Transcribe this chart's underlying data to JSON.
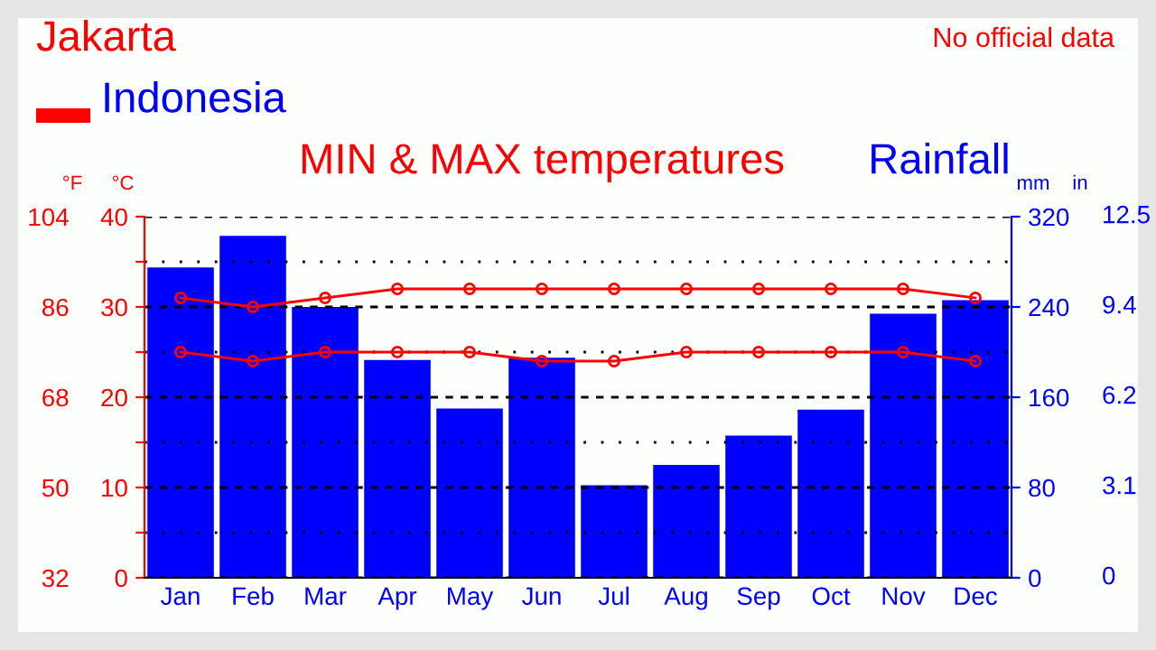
{
  "chart_data": {
    "type": "bar",
    "title": "Jakarta",
    "subtitle": "Indonesia",
    "annotations": [
      "MIN & MAX temperatures",
      "Rainfall",
      "No official data",
      "in",
      "0",
      "3.1",
      "6.2",
      "9.4",
      "12.5"
    ],
    "ylabel": "°C",
    "y2label": "mm",
    "y3label": "°F",
    "categories": [
      "Jan",
      "Feb",
      "Mar",
      "Apr",
      "May",
      "Jun",
      "Jul",
      "Aug",
      "Sep",
      "Oct",
      "Nov",
      "Dec"
    ],
    "series": [
      {
        "axis": "y2",
        "color": "#0000ff",
        "values": [
          275,
          303,
          240,
          193,
          150,
          195,
          82,
          100,
          126,
          149,
          234,
          246
        ]
      },
      {
        "type": "line",
        "axis": "y",
        "color": "#ff0000",
        "values": [
          31,
          30,
          31,
          32,
          32,
          32,
          32,
          32,
          32,
          32,
          32,
          31
        ]
      },
      {
        "type": "line",
        "axis": "y",
        "color": "#ff0000",
        "values": [
          25,
          24,
          25,
          25,
          25,
          24,
          24,
          25,
          25,
          25,
          25,
          24
        ]
      }
    ],
    "ylim": [
      0,
      40
    ],
    "yticks": [
      0,
      {
        "value": 5,
        "label": null
      },
      10,
      {
        "value": 15,
        "label": null
      },
      20,
      {
        "value": 25,
        "label": null
      },
      30,
      {
        "value": 35,
        "label": null
      },
      40
    ],
    "y2lim": [
      0,
      320
    ],
    "y2ticks": [
      0,
      80,
      160,
      240,
      320
    ],
    "y3lim": [
      32,
      104
    ],
    "y3ticks": [
      32,
      50,
      68,
      86,
      104
    ],
    "grid": "y",
    "marker": "circle",
    "line_style": "solid",
    "legend": false
  }
}
